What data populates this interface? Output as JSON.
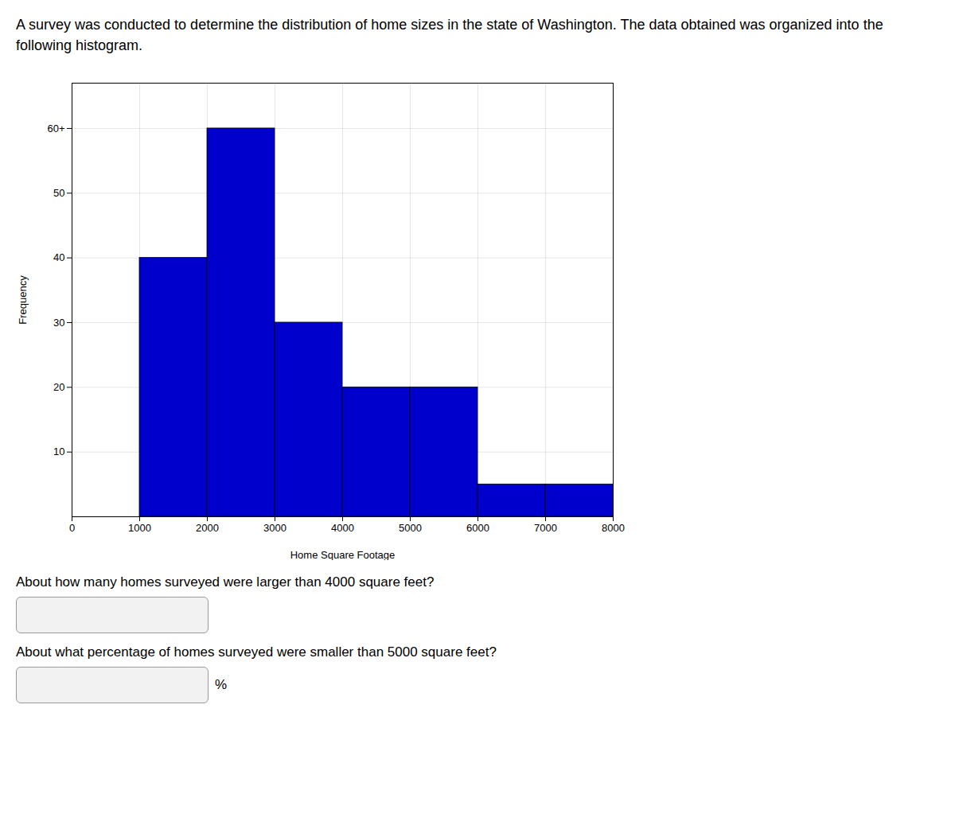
{
  "chart_data": {
    "type": "histogram",
    "title": "A survey was conducted to determine the distribution of home sizes in the state of Washington. The data obtained was organized into the following histogram.",
    "x_label": "Home Square Footage",
    "y_label": "Frequency",
    "bins": [
      1000,
      2000,
      3000,
      4000,
      5000,
      6000,
      7000,
      8000
    ],
    "values": [
      40,
      60,
      30,
      20,
      20,
      5,
      5
    ],
    "color": "#0000CC",
    "xlim": [
      0,
      8000
    ],
    "ylim": [
      0,
      67
    ],
    "xticks": [
      0,
      1000,
      2000,
      3000,
      4000,
      5000,
      6000,
      7000,
      8000
    ],
    "yticks": [
      10,
      20,
      30,
      40,
      50,
      {
        "value": 60,
        "label": "60+"
      }
    ],
    "grid": true,
    "annotations": [
      "About how many homes surveyed were larger than 4000 square feet?",
      "About what percentage of homes surveyed were smaller than 5000 square feet?",
      "%"
    ]
  }
}
